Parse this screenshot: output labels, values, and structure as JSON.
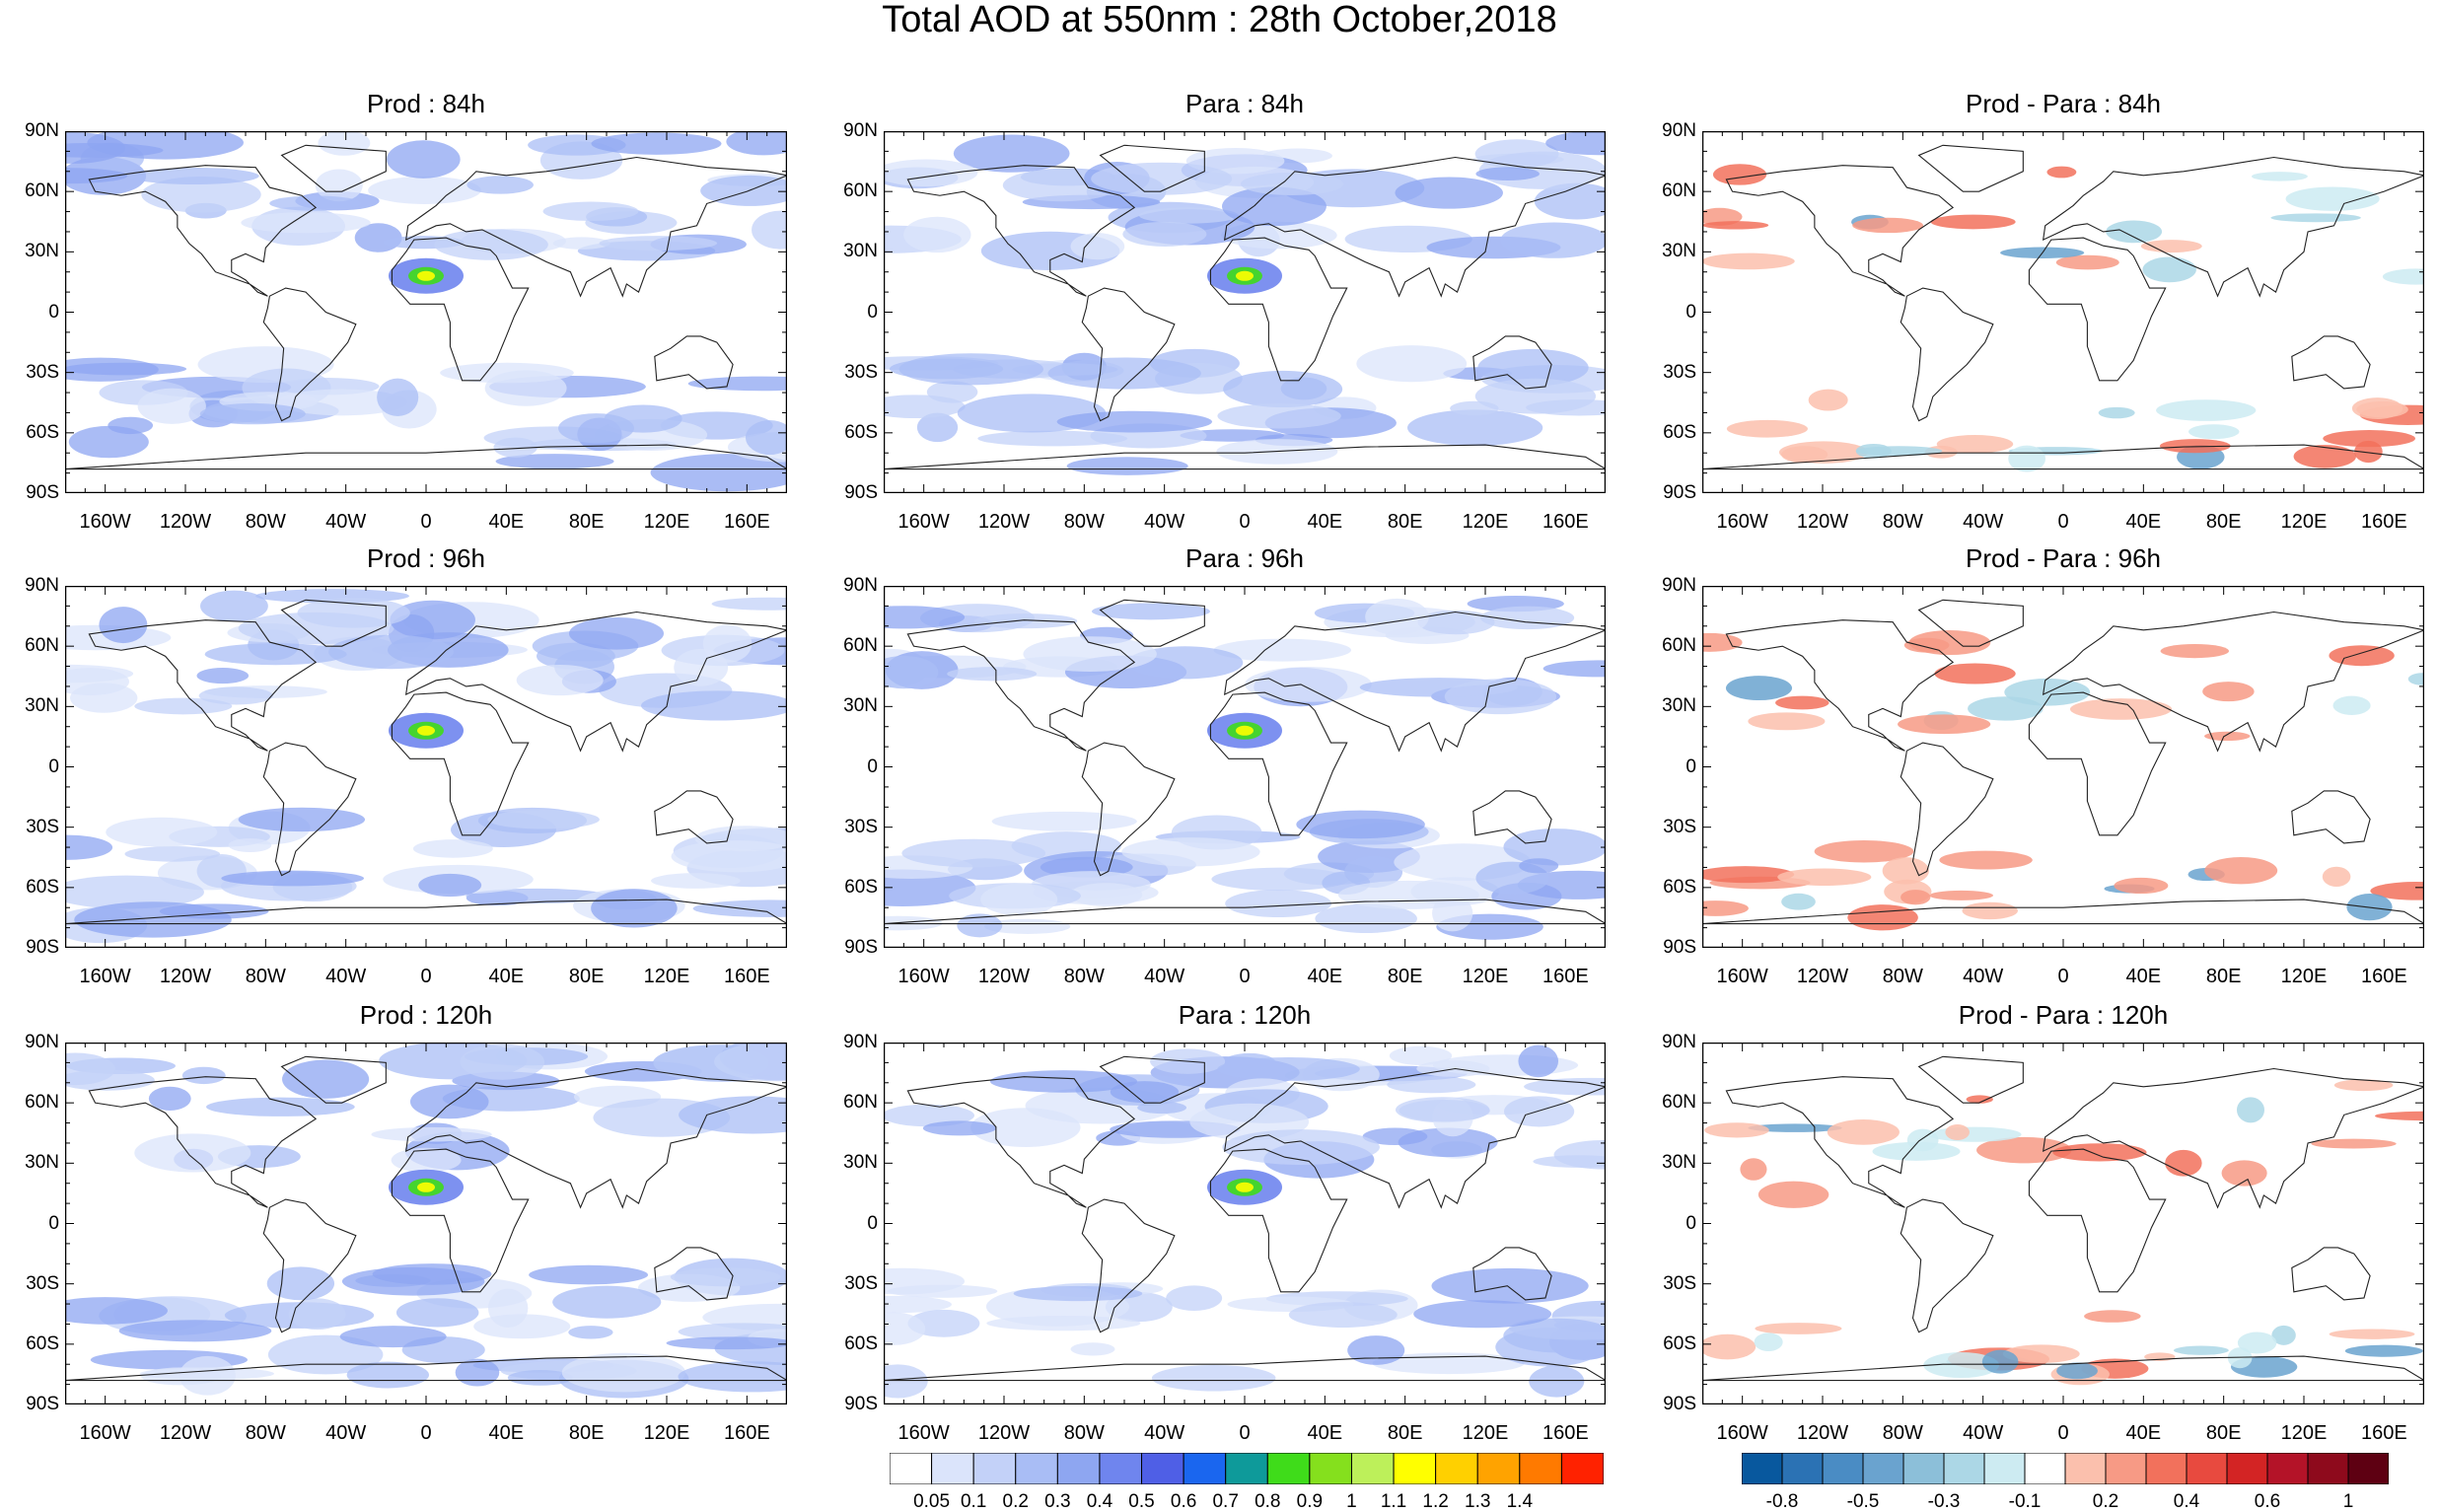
{
  "title": "Total AOD at 550nm : 28th October,2018",
  "lat_ticks": [
    "90N",
    "60N",
    "30N",
    "0",
    "30S",
    "60S",
    "90S"
  ],
  "lon_ticks": [
    "160W",
    "120W",
    "80W",
    "40W",
    "0",
    "40E",
    "80E",
    "120E",
    "160E"
  ],
  "panels": [
    {
      "title": "Prod : 84h",
      "kind": "aod"
    },
    {
      "title": "Para : 84h",
      "kind": "aod"
    },
    {
      "title": "Prod - Para : 84h",
      "kind": "diff"
    },
    {
      "title": "Prod : 96h",
      "kind": "aod"
    },
    {
      "title": "Para : 96h",
      "kind": "aod"
    },
    {
      "title": "Prod - Para : 96h",
      "kind": "diff"
    },
    {
      "title": "Prod : 120h",
      "kind": "aod"
    },
    {
      "title": "Para : 120h",
      "kind": "aod"
    },
    {
      "title": "Prod - Para : 120h",
      "kind": "diff"
    }
  ],
  "aod_colorbar": {
    "labels": [
      "0.05",
      "0.1",
      "0.2",
      "0.3",
      "0.4",
      "0.5",
      "0.6",
      "0.7",
      "0.8",
      "0.9",
      "1",
      "1.1",
      "1.2",
      "1.3",
      "1.4"
    ],
    "colors": [
      "#ffffff",
      "#dbe4fb",
      "#c3d1f8",
      "#a9bdf5",
      "#8ea6f1",
      "#6f85ee",
      "#4f5fe6",
      "#1a66ef",
      "#0e9a9a",
      "#3fdc1a",
      "#85e01d",
      "#bdf05a",
      "#ffff00",
      "#ffd000",
      "#ffa300",
      "#ff7a00",
      "#ff2200"
    ]
  },
  "diff_colorbar": {
    "labels": [
      "-0.8",
      "-0.5",
      "-0.3",
      "-0.1",
      "0.2",
      "0.4",
      "0.6",
      "1"
    ],
    "colors": [
      "#08589e",
      "#2b72b4",
      "#4a8cc4",
      "#6aa3cf",
      "#8cbfd9",
      "#acd7e6",
      "#cdebf2",
      "#ffffff",
      "#fbc0ad",
      "#f79a85",
      "#f2715c",
      "#e84a3f",
      "#d32424",
      "#b41328",
      "#8e0a1c",
      "#5e0012"
    ]
  }
}
